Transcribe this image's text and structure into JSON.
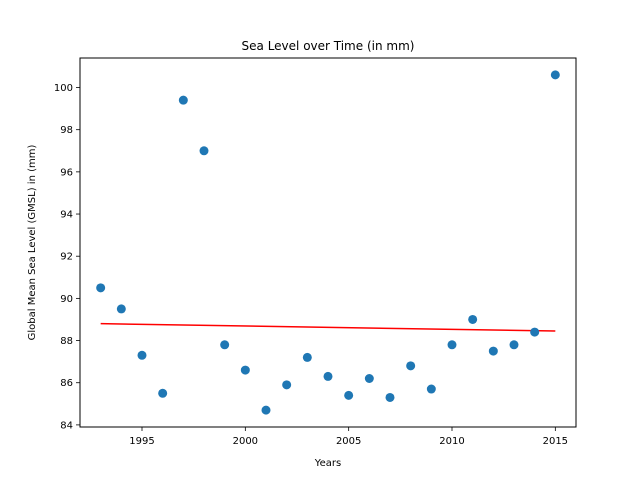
{
  "chart_data": {
    "type": "scatter",
    "title": "Sea Level over Time (in mm)",
    "xlabel": "Years",
    "ylabel": "Global Mean Sea Level (GMSL) in (mm)",
    "xlim": [
      1992.0,
      2016.0
    ],
    "ylim": [
      83.9,
      101.4
    ],
    "xticks": [
      1995,
      2000,
      2005,
      2010,
      2015
    ],
    "yticks": [
      84,
      86,
      88,
      90,
      92,
      94,
      96,
      98,
      100
    ],
    "grid": false,
    "colors": {
      "points": "#1f77b4",
      "trend": "#ff0000"
    },
    "series": [
      {
        "type": "scatter",
        "x": [
          1993,
          1994,
          1995,
          1996,
          1997,
          1998,
          1999,
          2000,
          2001,
          2002,
          2003,
          2004,
          2005,
          2006,
          2007,
          2008,
          2009,
          2010,
          2011,
          2012,
          2013,
          2014,
          2015
        ],
        "y": [
          90.5,
          89.5,
          87.3,
          85.5,
          99.4,
          97.0,
          87.8,
          86.6,
          84.7,
          85.9,
          87.2,
          86.3,
          85.4,
          86.2,
          85.3,
          86.8,
          85.7,
          87.8,
          89.0,
          87.5,
          87.8,
          88.4,
          100.6
        ]
      },
      {
        "type": "line",
        "x": [
          1993,
          2015
        ],
        "y": [
          88.8,
          88.45
        ]
      }
    ]
  }
}
